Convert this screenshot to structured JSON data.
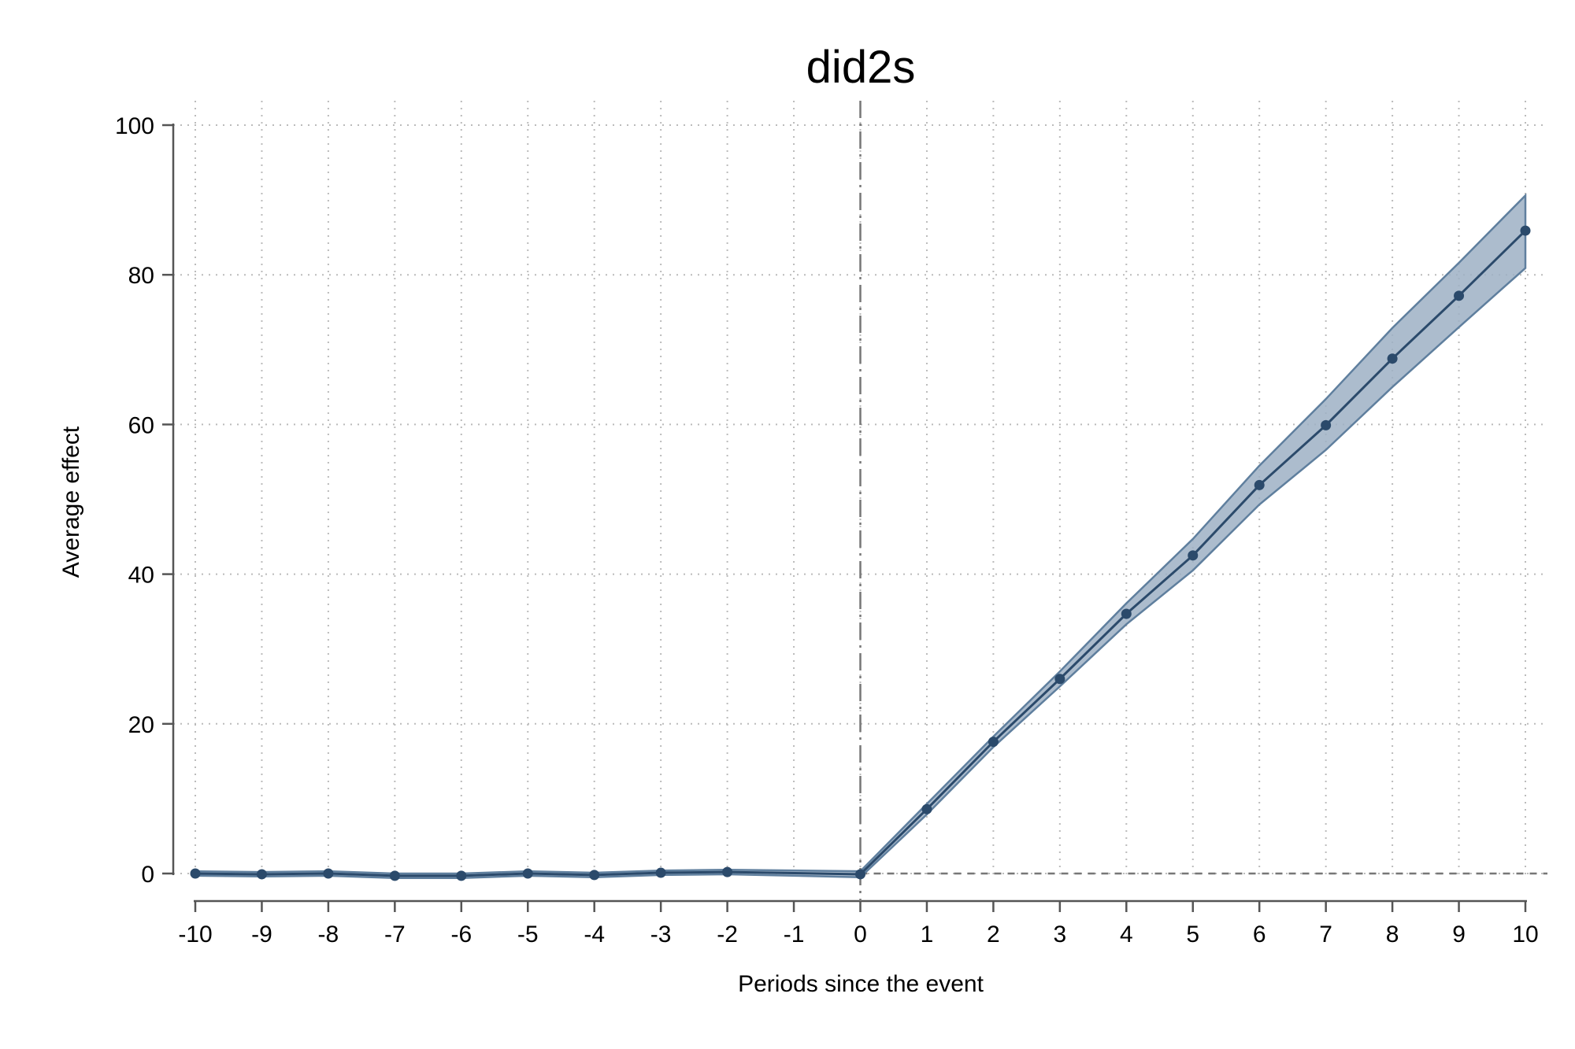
{
  "chart_data": {
    "type": "line",
    "title": "did2s",
    "xlabel": "Periods since the event",
    "ylabel": "Average effect",
    "xlim": [
      -10,
      10
    ],
    "ylim": [
      0,
      100
    ],
    "x_ticks": [
      -10,
      -9,
      -8,
      -7,
      -6,
      -5,
      -4,
      -3,
      -2,
      -1,
      0,
      1,
      2,
      3,
      4,
      5,
      6,
      7,
      8,
      9,
      10
    ],
    "y_ticks": [
      0,
      20,
      40,
      60,
      80,
      100
    ],
    "grid": true,
    "reference_lines": {
      "vertical_x": 0,
      "horizontal_y": 0
    },
    "series": [
      {
        "x": [
          -10,
          -9,
          -8,
          -7,
          -6,
          -5,
          -4,
          -3,
          -2,
          0,
          1,
          2,
          3,
          4,
          5,
          6,
          7,
          8,
          9,
          10
        ],
        "values": [
          0.0,
          -0.1,
          0.0,
          -0.3,
          -0.3,
          0.0,
          -0.2,
          0.1,
          0.2,
          -0.1,
          8.6,
          17.6,
          26.0,
          34.7,
          42.5,
          51.9,
          59.9,
          68.8,
          77.2,
          85.9
        ],
        "ci_lower": [
          -0.3,
          -0.4,
          -0.3,
          -0.6,
          -0.6,
          -0.3,
          -0.5,
          -0.2,
          -0.1,
          -0.5,
          7.9,
          16.9,
          25.0,
          33.3,
          40.5,
          49.3,
          56.6,
          65.0,
          73.0,
          80.9
        ],
        "ci_upper": [
          0.3,
          0.2,
          0.3,
          0.0,
          0.0,
          0.3,
          0.1,
          0.4,
          0.5,
          0.3,
          9.3,
          18.3,
          27.0,
          36.1,
          44.7,
          54.5,
          63.4,
          72.9,
          81.6,
          90.6
        ]
      }
    ],
    "colors": {
      "line": "#2b4a6b",
      "band": "#9db0c4",
      "band_edge": "#5f7f9e",
      "grid": "#bbbbbb",
      "axis": "#555555",
      "ref": "#777777"
    }
  }
}
